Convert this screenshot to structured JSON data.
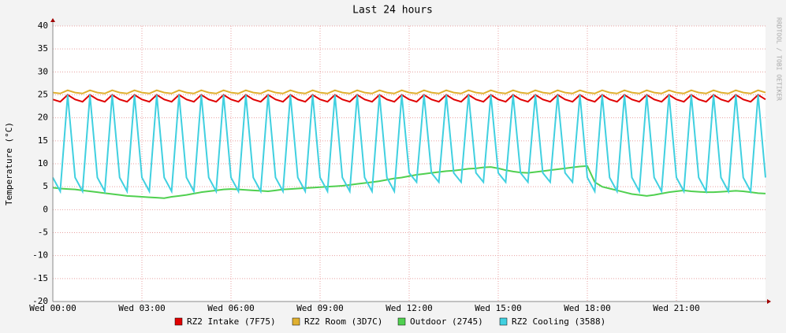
{
  "chart_data": {
    "type": "line",
    "title": "Last 24 hours",
    "y_label": "Temperature (°C)",
    "annotation": "RRDTOOL / TOBI OETIKER",
    "x": [
      0,
      0.25,
      0.5,
      0.75,
      1,
      1.25,
      1.5,
      1.75,
      2,
      2.25,
      2.5,
      2.75,
      3,
      3.25,
      3.5,
      3.75,
      4,
      4.25,
      4.5,
      4.75,
      5,
      5.25,
      5.5,
      5.75,
      6,
      6.25,
      6.5,
      6.75,
      7,
      7.25,
      7.5,
      7.75,
      8,
      8.25,
      8.5,
      8.75,
      9,
      9.25,
      9.5,
      9.75,
      10,
      10.25,
      10.5,
      10.75,
      11,
      11.25,
      11.5,
      11.75,
      12,
      12.25,
      12.5,
      12.75,
      13,
      13.25,
      13.5,
      13.75,
      14,
      14.25,
      14.5,
      14.75,
      15,
      15.25,
      15.5,
      15.75,
      16,
      16.25,
      16.5,
      16.75,
      17,
      17.25,
      17.5,
      17.75,
      18,
      18.25,
      18.5,
      18.75,
      19,
      19.25,
      19.5,
      19.75,
      20,
      20.25,
      20.5,
      20.75,
      21,
      21.25,
      21.5,
      21.75,
      22,
      22.25,
      22.5,
      22.75,
      23,
      23.25,
      23.5,
      23.75,
      24
    ],
    "xlim": [
      0,
      24
    ],
    "xticks": [
      {
        "value": 0,
        "label": "Wed 00:00"
      },
      {
        "value": 3,
        "label": "Wed 03:00"
      },
      {
        "value": 6,
        "label": "Wed 06:00"
      },
      {
        "value": 9,
        "label": "Wed 09:00"
      },
      {
        "value": 12,
        "label": "Wed 12:00"
      },
      {
        "value": 15,
        "label": "Wed 15:00"
      },
      {
        "value": 18,
        "label": "Wed 18:00"
      },
      {
        "value": 21,
        "label": "Wed 21:00"
      }
    ],
    "ylim": [
      -20,
      40
    ],
    "yticks": [
      -20,
      -15,
      -10,
      -5,
      0,
      5,
      10,
      15,
      20,
      25,
      30,
      35,
      40
    ],
    "grid": true,
    "series": [
      {
        "name": "RZ2 Intake (7F75)",
        "color": "#e00000",
        "values": [
          24,
          23.5,
          25,
          24,
          23.5,
          25,
          24,
          23.5,
          25,
          24,
          23.5,
          25,
          24,
          23.5,
          25,
          24,
          23.5,
          25,
          24,
          23.5,
          25,
          24,
          23.5,
          25,
          24,
          23.5,
          25,
          24,
          23.5,
          25,
          24,
          23.5,
          25,
          24,
          23.5,
          25,
          24,
          23.5,
          25,
          24,
          23.5,
          25,
          24,
          23.5,
          25,
          24,
          23.5,
          25,
          24,
          23.5,
          25,
          24,
          23.5,
          25,
          24,
          23.5,
          25,
          24,
          23.5,
          25,
          24,
          23.5,
          25,
          24,
          23.5,
          25,
          24,
          23.5,
          25,
          24,
          23.5,
          25,
          24,
          23.5,
          25,
          24,
          23.5,
          25,
          24,
          23.5,
          25,
          24,
          23.5,
          25,
          24,
          23.5,
          25,
          24,
          23.5,
          25,
          24,
          23.5,
          25,
          24,
          23.5,
          25,
          24
        ]
      },
      {
        "name": "RZ2 Room (3D7C)",
        "color": "#e0b030",
        "values": [
          25.5,
          25.3,
          26,
          25.5,
          25.3,
          26,
          25.5,
          25.3,
          26,
          25.5,
          25.3,
          26,
          25.5,
          25.3,
          26,
          25.5,
          25.3,
          26,
          25.5,
          25.3,
          26,
          25.5,
          25.3,
          26,
          25.5,
          25.3,
          26,
          25.5,
          25.3,
          26,
          25.5,
          25.3,
          26,
          25.5,
          25.3,
          26,
          25.5,
          25.3,
          26,
          25.5,
          25.3,
          26,
          25.5,
          25.3,
          26,
          25.5,
          25.3,
          26,
          25.5,
          25.3,
          26,
          25.5,
          25.3,
          26,
          25.5,
          25.3,
          26,
          25.5,
          25.3,
          26,
          25.5,
          25.3,
          26,
          25.5,
          25.3,
          26,
          25.5,
          25.3,
          26,
          25.5,
          25.3,
          26,
          25.5,
          25.3,
          26,
          25.5,
          25.3,
          26,
          25.5,
          25.3,
          26,
          25.5,
          25.3,
          26,
          25.5,
          25.3,
          26,
          25.5,
          25.3,
          26,
          25.5,
          25.3,
          26,
          25.5,
          25.3,
          26,
          25.5
        ]
      },
      {
        "name": "Outdoor (2745)",
        "color": "#50d050",
        "values": [
          4.8,
          4.6,
          4.5,
          4.4,
          4.2,
          4.0,
          3.8,
          3.6,
          3.4,
          3.2,
          3.0,
          2.9,
          2.8,
          2.7,
          2.6,
          2.5,
          2.8,
          3.0,
          3.2,
          3.5,
          3.8,
          4.0,
          4.2,
          4.4,
          4.5,
          4.4,
          4.3,
          4.2,
          4.1,
          4.0,
          4.2,
          4.4,
          4.5,
          4.6,
          4.7,
          4.8,
          4.9,
          5.0,
          5.1,
          5.2,
          5.4,
          5.6,
          5.8,
          6.0,
          6.2,
          6.5,
          6.8,
          7.0,
          7.3,
          7.6,
          7.8,
          8.0,
          8.2,
          8.4,
          8.5,
          8.7,
          8.9,
          9.0,
          9.2,
          9.3,
          9.0,
          8.6,
          8.3,
          8.1,
          8.0,
          8.2,
          8.4,
          8.6,
          8.8,
          9.0,
          9.2,
          9.4,
          9.5,
          6.0,
          5.0,
          4.6,
          4.2,
          3.8,
          3.4,
          3.2,
          3.0,
          3.2,
          3.5,
          3.8,
          4.0,
          4.2,
          4.0,
          3.9,
          3.8,
          3.8,
          3.9,
          4.0,
          4.1,
          4.0,
          3.8,
          3.6,
          3.5
        ]
      },
      {
        "name": "RZ2 Cooling (3588)",
        "color": "#40d0e0",
        "values": [
          7,
          4,
          25,
          7,
          4,
          25,
          7,
          4,
          25,
          7,
          4,
          25,
          7,
          4,
          25,
          7,
          4,
          25,
          7,
          4,
          25,
          7,
          4,
          25,
          7,
          4,
          25,
          7,
          4,
          25,
          7,
          4,
          25,
          7,
          4,
          25,
          7,
          4,
          25,
          7,
          4,
          25,
          7,
          4,
          25,
          7,
          4,
          25,
          8,
          6,
          25,
          8,
          6,
          25,
          8,
          6,
          25,
          8,
          6,
          25,
          8,
          6,
          25,
          8,
          6,
          25,
          8,
          6,
          25,
          8,
          6,
          25,
          7,
          4,
          25,
          7,
          4,
          25,
          7,
          4,
          25,
          7,
          4,
          25,
          7,
          4,
          25,
          7,
          4,
          25,
          7,
          4,
          25,
          7,
          4,
          25,
          7
        ]
      }
    ]
  }
}
